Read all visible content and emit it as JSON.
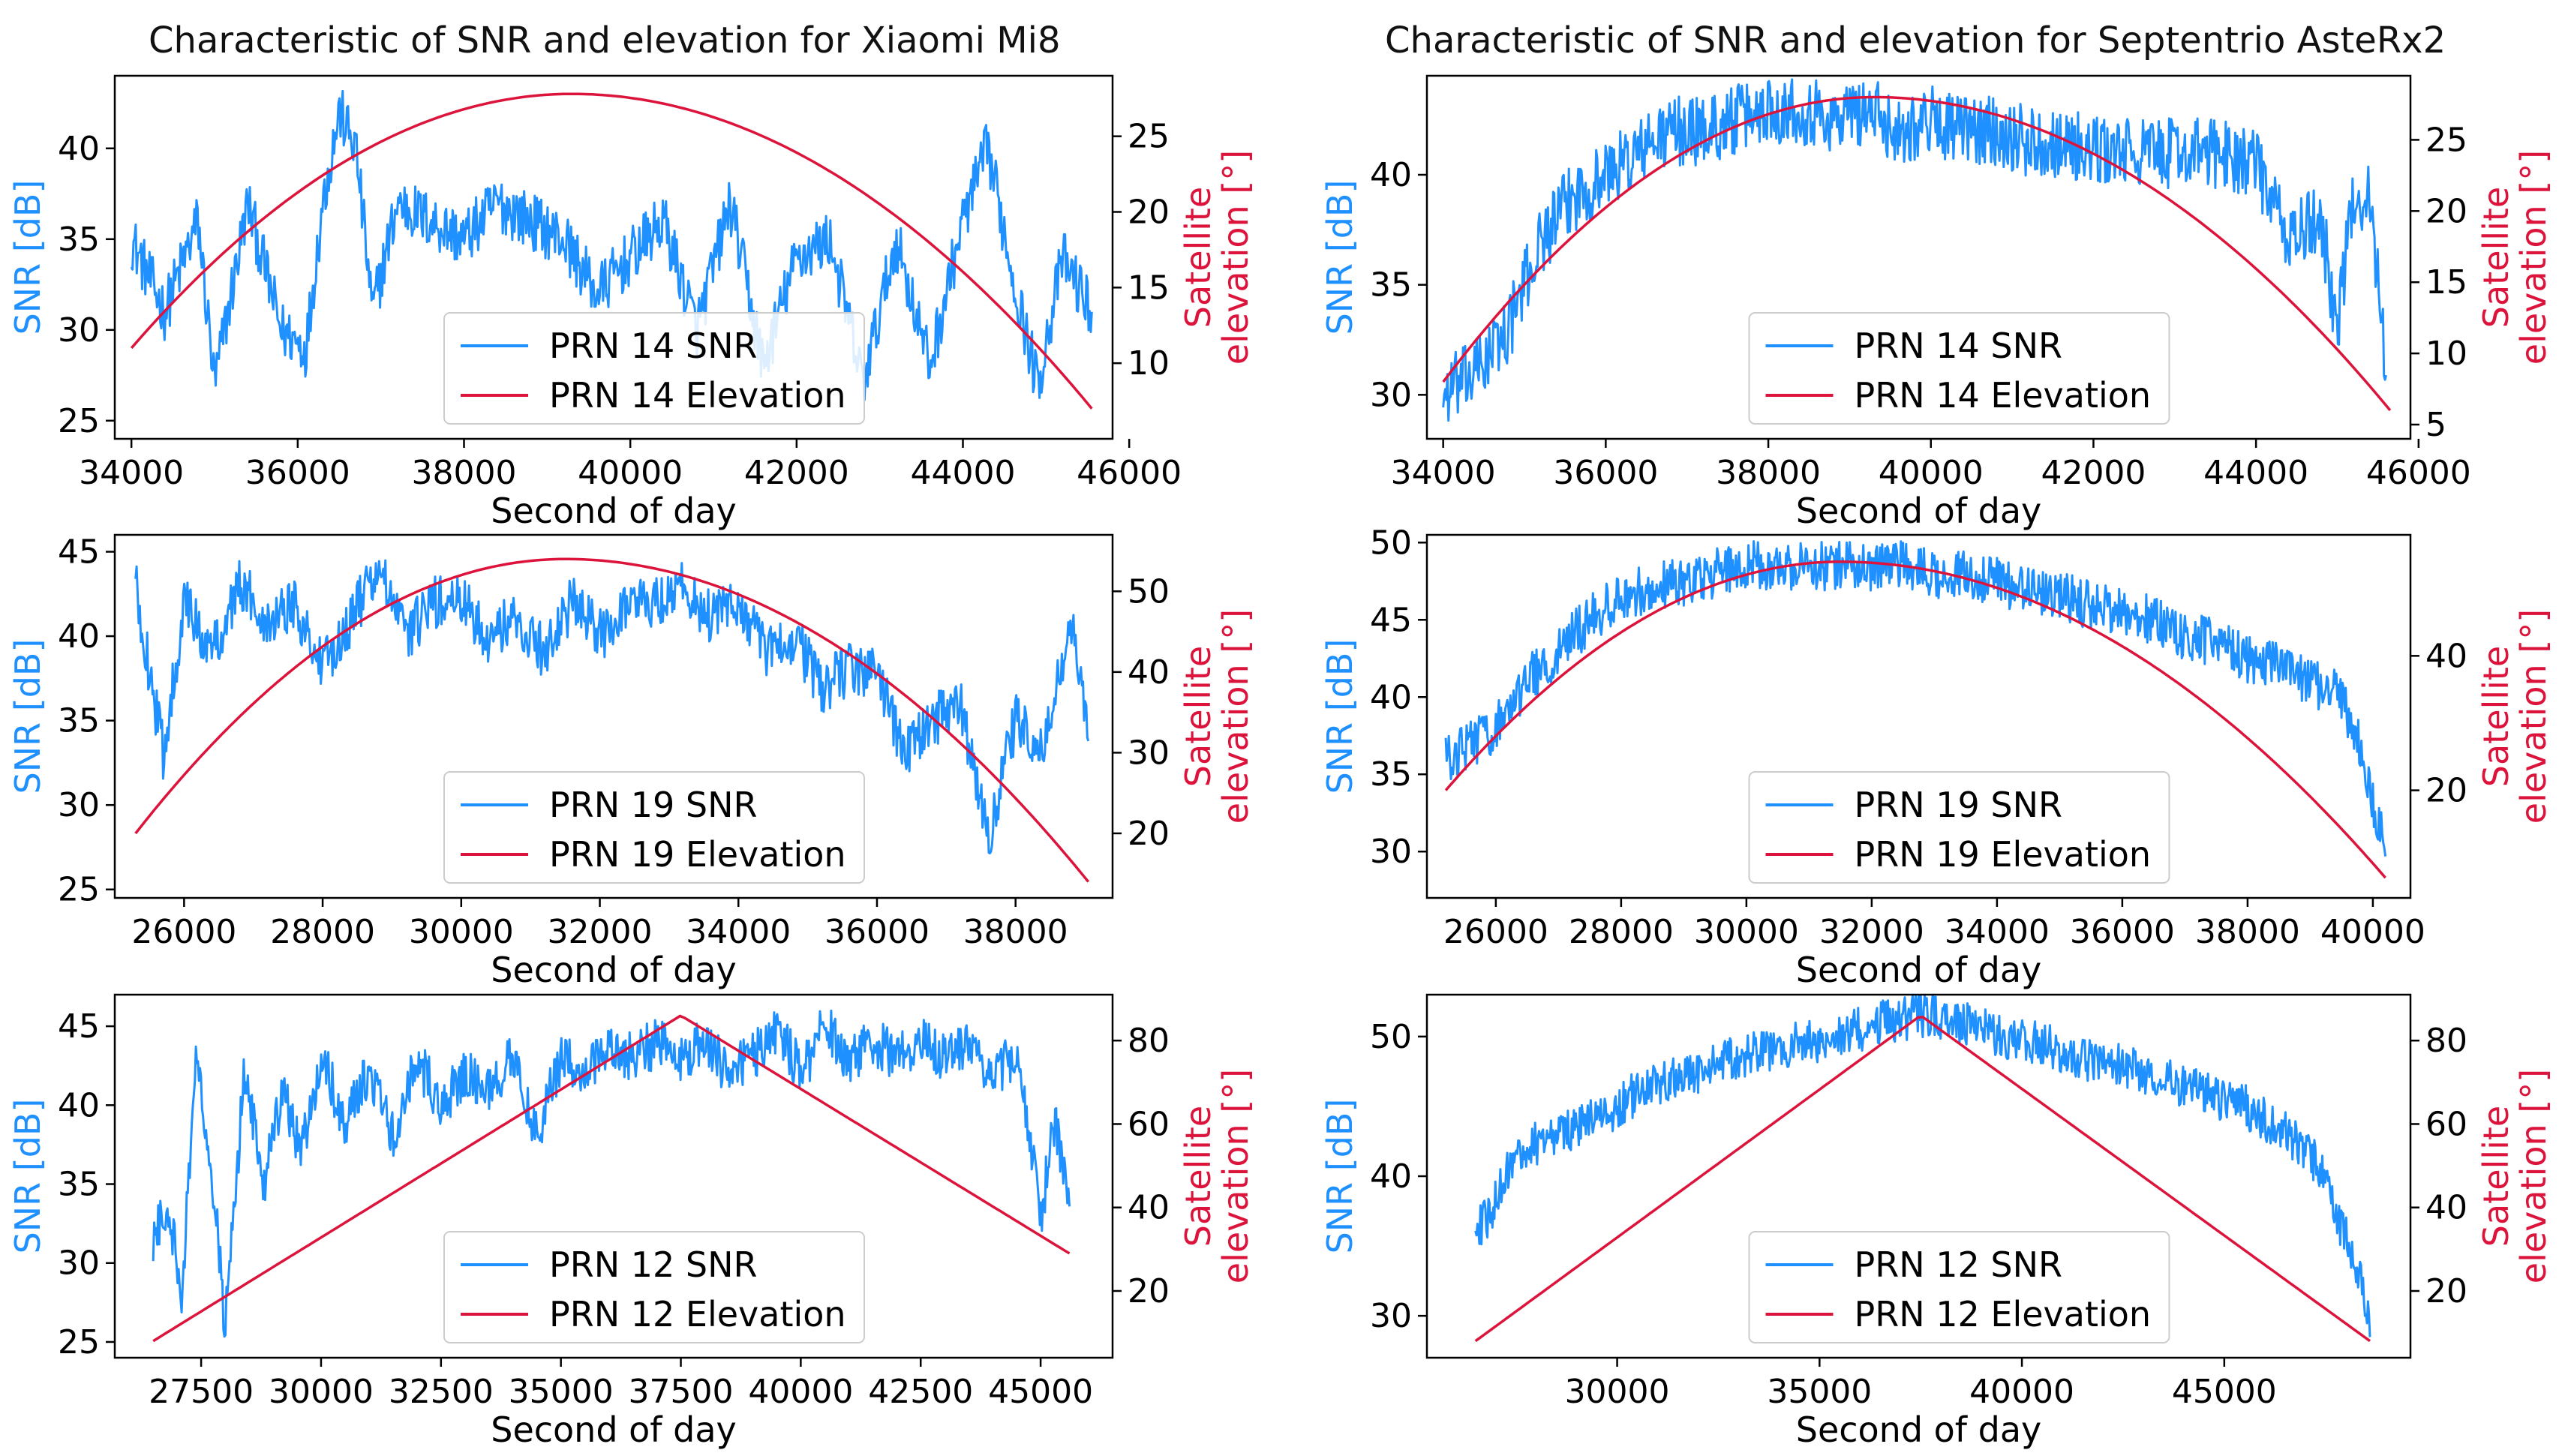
{
  "figure": {
    "titles": [
      "Characteristic of SNR and elevation for Xiaomi Mi8",
      "Characteristic of SNR and elevation for Septentrio AsteRx2"
    ]
  },
  "colors": {
    "snr": "#1e90ff",
    "elevation": "#dc143c",
    "axis": "#000000"
  },
  "chart_data": [
    {
      "type": "line",
      "device": "Xiaomi Mi8",
      "prn": 14,
      "xlabel": "Second of day",
      "ylabel": "SNR [dB]",
      "y2label": [
        "Satellite",
        "elevation [°]"
      ],
      "xlim": [
        33800,
        45800
      ],
      "ylim": [
        24,
        44
      ],
      "y2lim": [
        5,
        29
      ],
      "xticks": [
        34000,
        36000,
        38000,
        40000,
        42000,
        44000,
        46000
      ],
      "yticks": [
        25,
        30,
        35,
        40
      ],
      "y2ticks": [
        10,
        15,
        20,
        25
      ],
      "legend": [
        "PRN 14 SNR",
        "PRN 14 Elevation"
      ],
      "legend_loc": "lower center",
      "snr": {
        "x": [
          34000,
          34400,
          34800,
          35000,
          35400,
          35800,
          36100,
          36300,
          36500,
          36700,
          36900,
          37200,
          37600,
          38000,
          38400,
          38800,
          39200,
          39600,
          40000,
          40400,
          40800,
          41200,
          41600,
          42000,
          42400,
          42800,
          43200,
          43600,
          44000,
          44300,
          44600,
          44900,
          45200,
          45550
        ],
        "y": [
          35,
          31,
          36,
          27,
          37,
          30,
          29,
          37,
          42,
          40,
          31,
          37,
          36,
          35,
          37,
          36,
          35,
          32,
          34,
          36,
          30,
          37,
          28,
          34,
          35,
          27,
          35,
          28,
          36,
          40,
          33,
          27,
          34,
          31
        ]
      },
      "elevation": {
        "x": [
          34000,
          39300,
          45550
        ],
        "y": [
          11,
          27.8,
          7
        ],
        "shape": "arc"
      }
    },
    {
      "type": "line",
      "device": "Septentrio AsteRx2",
      "prn": 14,
      "xlabel": "Second of day",
      "ylabel": "SNR [dB]",
      "y2label": [
        "Satellite",
        "elevation [°]"
      ],
      "xlim": [
        33800,
        45900
      ],
      "ylim": [
        28,
        44.5
      ],
      "y2lim": [
        4,
        29.5
      ],
      "xticks": [
        34000,
        36000,
        38000,
        40000,
        42000,
        44000,
        46000
      ],
      "yticks": [
        30,
        35,
        40
      ],
      "y2ticks": [
        5,
        10,
        15,
        20,
        25
      ],
      "legend": [
        "PRN 14 SNR",
        "PRN 14 Elevation"
      ],
      "legend_loc": "lower center",
      "snr": {
        "x": [
          34000,
          34400,
          34800,
          35200,
          35600,
          36000,
          36400,
          36800,
          37200,
          37600,
          38000,
          38400,
          38800,
          39200,
          39600,
          40000,
          40400,
          40800,
          41200,
          41600,
          42000,
          42400,
          42800,
          43200,
          43600,
          44000,
          44400,
          44800,
          45000,
          45200,
          45400,
          45600
        ],
        "y": [
          30,
          31,
          33,
          37,
          39,
          40,
          41,
          42,
          42,
          42.5,
          43,
          43,
          42.5,
          43,
          42,
          42.5,
          42,
          42,
          41.5,
          41.5,
          41,
          41,
          41,
          41,
          41,
          40.5,
          37,
          38,
          33,
          39,
          39,
          31
        ]
      },
      "elevation": {
        "x": [
          34000,
          39300,
          45650
        ],
        "y": [
          8,
          28,
          6
        ],
        "shape": "arc"
      }
    },
    {
      "type": "line",
      "device": "Xiaomi Mi8",
      "prn": 19,
      "xlabel": "Second of day",
      "ylabel": "SNR [dB]",
      "y2label": [
        "Satellite",
        "elevation [°]"
      ],
      "xlim": [
        25000,
        39400
      ],
      "ylim": [
        24.5,
        46
      ],
      "y2lim": [
        12,
        57
      ],
      "xticks": [
        26000,
        28000,
        30000,
        32000,
        34000,
        36000,
        38000
      ],
      "yticks": [
        25,
        30,
        35,
        40,
        45
      ],
      "y2ticks": [
        20,
        30,
        40,
        50
      ],
      "legend": [
        "PRN 19 SNR",
        "PRN 19 Elevation"
      ],
      "legend_loc": "lower center",
      "snr": {
        "x": [
          25300,
          25700,
          26000,
          26400,
          26800,
          27200,
          27600,
          28000,
          28400,
          28800,
          29200,
          29600,
          30000,
          30400,
          30800,
          31200,
          31600,
          32000,
          32400,
          32800,
          33200,
          33600,
          34000,
          34400,
          34800,
          35200,
          35600,
          36000,
          36400,
          36800,
          37200,
          37600,
          38000,
          38400,
          38800,
          39050
        ],
        "y": [
          43,
          33,
          42,
          39,
          43,
          41,
          42,
          38,
          41,
          44,
          40,
          42,
          42,
          40,
          41,
          39,
          42,
          40,
          42,
          42,
          43,
          41,
          42,
          39,
          40,
          37,
          38,
          38,
          33,
          35,
          36,
          28,
          35,
          33,
          41,
          34
        ]
      },
      "elevation": {
        "x": [
          25300,
          31500,
          39050
        ],
        "y": [
          20,
          54,
          14
        ],
        "shape": "arc"
      }
    },
    {
      "type": "line",
      "device": "Septentrio AsteRx2",
      "prn": 19,
      "xlabel": "Second of day",
      "ylabel": "SNR [dB]",
      "y2label": [
        "Satellite",
        "elevation [°]"
      ],
      "xlim": [
        24900,
        40600
      ],
      "ylim": [
        27,
        50.5
      ],
      "y2lim": [
        4,
        58
      ],
      "xticks": [
        26000,
        28000,
        30000,
        32000,
        34000,
        36000,
        38000,
        40000
      ],
      "yticks": [
        30,
        35,
        40,
        45,
        50
      ],
      "y2ticks": [
        20,
        40
      ],
      "legend": [
        "PRN 19 SNR",
        "PRN 19 Elevation"
      ],
      "legend_loc": "lower center",
      "snr": {
        "x": [
          25200,
          25600,
          26000,
          26500,
          27000,
          27500,
          28000,
          28500,
          29000,
          29500,
          30000,
          30500,
          31000,
          31500,
          32000,
          32500,
          33000,
          33500,
          34000,
          34500,
          35000,
          35500,
          36000,
          36500,
          37000,
          37500,
          38000,
          38500,
          39000,
          39500,
          39800,
          40000,
          40200
        ],
        "y": [
          36,
          37,
          38,
          41,
          43,
          45,
          46.5,
          47,
          47.5,
          48,
          48.5,
          48.5,
          48.5,
          48.5,
          48.5,
          48.5,
          48,
          48,
          47.5,
          47,
          46.5,
          46,
          45.5,
          45,
          44,
          43.5,
          42.5,
          42,
          41,
          40,
          37,
          33,
          30
        ]
      },
      "elevation": {
        "x": [
          25200,
          31500,
          40200
        ],
        "y": [
          20,
          54,
          7
        ],
        "shape": "arc"
      }
    },
    {
      "type": "line",
      "device": "Xiaomi Mi8",
      "prn": 12,
      "xlabel": "Second of day",
      "ylabel": "SNR [dB]",
      "y2label": [
        "Satellite",
        "elevation [°]"
      ],
      "xlim": [
        25700,
        46500
      ],
      "ylim": [
        24,
        47
      ],
      "y2lim": [
        4,
        91
      ],
      "xticks": [
        27500,
        30000,
        32500,
        35000,
        37500,
        40000,
        42500,
        45000
      ],
      "yticks": [
        25,
        30,
        35,
        40,
        45
      ],
      "y2ticks": [
        20,
        40,
        60,
        80
      ],
      "legend": [
        "PRN 12 SNR",
        "PRN 12 Elevation"
      ],
      "legend_loc": "lower center",
      "snr": {
        "x": [
          26500,
          26800,
          27100,
          27400,
          27700,
          28000,
          28400,
          28800,
          29200,
          29600,
          30000,
          30500,
          31000,
          31500,
          32000,
          32500,
          33000,
          33500,
          34000,
          34500,
          35000,
          35500,
          36000,
          36500,
          37000,
          37500,
          38000,
          38500,
          39000,
          39500,
          40000,
          40500,
          41000,
          41500,
          42000,
          42500,
          43000,
          43500,
          44000,
          44500,
          45000,
          45300,
          45600
        ],
        "y": [
          31,
          34,
          28,
          43,
          37,
          26,
          42,
          35,
          41,
          37,
          43,
          39,
          42,
          38,
          43,
          40,
          42,
          41,
          43,
          38,
          43,
          42,
          44,
          43,
          44,
          43,
          44,
          42,
          43,
          45,
          42,
          45,
          43,
          44,
          43,
          44,
          43,
          44,
          42,
          43,
          33,
          39,
          34
        ]
      },
      "elevation": {
        "x": [
          26500,
          37500,
          45600
        ],
        "y": [
          8,
          86,
          29
        ],
        "shape": "peak"
      }
    },
    {
      "type": "line",
      "device": "Septentrio AsteRx2",
      "prn": 12,
      "xlabel": "Second of day",
      "ylabel": "SNR [dB]",
      "y2label": [
        "Satellite",
        "elevation [°]"
      ],
      "xlim": [
        25300,
        49600
      ],
      "ylim": [
        27,
        53
      ],
      "y2lim": [
        4,
        91
      ],
      "xticks": [
        30000,
        35000,
        40000,
        45000
      ],
      "yticks": [
        30,
        40,
        50
      ],
      "y2ticks": [
        20,
        40,
        60,
        80
      ],
      "legend": [
        "PRN 12 SNR",
        "PRN 12 Elevation"
      ],
      "legend_loc": "lower center",
      "snr": {
        "x": [
          26500,
          26800,
          27200,
          27800,
          28500,
          29500,
          30500,
          31500,
          32500,
          33500,
          34500,
          35500,
          36500,
          37500,
          38500,
          39500,
          40500,
          41500,
          42500,
          43500,
          44500,
          45500,
          46500,
          47000,
          47500,
          47800,
          48100,
          48400,
          48600
        ],
        "y": [
          36,
          37,
          40,
          42,
          43,
          44,
          46,
          47,
          48,
          49,
          49.5,
          50,
          51,
          51.5,
          51,
          50,
          49.5,
          48.5,
          48,
          47,
          46,
          45,
          43,
          42,
          40,
          37,
          35,
          32,
          29
        ]
      },
      "elevation": {
        "x": [
          26500,
          37500,
          48600
        ],
        "y": [
          8,
          86,
          8
        ],
        "shape": "peak"
      }
    }
  ]
}
